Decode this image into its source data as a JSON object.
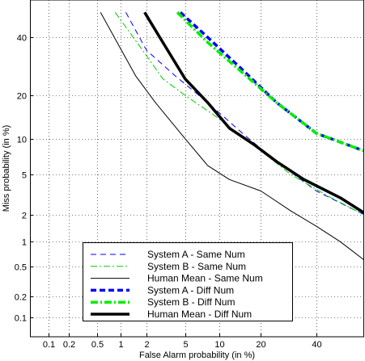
{
  "chart_data": {
    "type": "line",
    "title": "",
    "xlabel": "False Alarm probability (in %)",
    "ylabel": "Miss probability (in %)",
    "x_scale": "normal-deviate",
    "y_scale": "normal-deviate",
    "xlim": [
      0.05,
      60
    ],
    "ylim": [
      0.05,
      55
    ],
    "grid": true,
    "legend_position": "bottom-center",
    "x_ticks": [
      0.1,
      0.2,
      0.5,
      1,
      2,
      5,
      10,
      20,
      40
    ],
    "x_tick_labels": [
      "0.1",
      "0.2",
      "0.5",
      "1",
      "2",
      "5",
      "10",
      "20",
      "40"
    ],
    "y_ticks": [
      0.1,
      0.2,
      0.5,
      1,
      2,
      5,
      10,
      20,
      40
    ],
    "y_tick_labels": [
      "0.1",
      "0.2",
      "0.5",
      "1",
      "2",
      "5",
      "10",
      "20",
      "40"
    ],
    "series": [
      {
        "name": "System A - Same Num",
        "color": "#0000ff",
        "dash": "7,5",
        "width": 1,
        "points": [
          [
            1.15,
            50
          ],
          [
            2,
            35
          ],
          [
            4,
            26
          ],
          [
            8,
            18
          ],
          [
            15,
            11
          ],
          [
            25,
            6.5
          ],
          [
            40,
            3.5
          ],
          [
            60,
            2.0
          ]
        ]
      },
      {
        "name": "System B - Same Num",
        "color": "#00cc00",
        "dash": "8,3,2,3",
        "width": 1,
        "points": [
          [
            0.85,
            50
          ],
          [
            2,
            33
          ],
          [
            3,
            25
          ],
          [
            5,
            20
          ],
          [
            10,
            14
          ],
          [
            20,
            8
          ],
          [
            30,
            5
          ],
          [
            45,
            3.1
          ],
          [
            60,
            2.0
          ]
        ]
      },
      {
        "name": "Human Mean - Same Num",
        "color": "#000000",
        "dash": "",
        "width": 1,
        "points": [
          [
            0.55,
            50
          ],
          [
            0.9,
            38
          ],
          [
            1.5,
            26
          ],
          [
            2.5,
            18
          ],
          [
            5,
            10
          ],
          [
            8,
            6
          ],
          [
            12,
            4.5
          ],
          [
            20,
            3.5
          ],
          [
            30,
            2.2
          ],
          [
            40,
            1.5
          ],
          [
            50,
            1.0
          ],
          [
            60,
            0.6
          ]
        ]
      },
      {
        "name": "System A - Diff Num",
        "color": "#0000ff",
        "dash": "7,4",
        "width": 3.5,
        "points": [
          [
            4.5,
            50
          ],
          [
            8,
            40
          ],
          [
            15,
            28
          ],
          [
            25,
            18
          ],
          [
            40,
            11
          ],
          [
            60,
            8
          ]
        ]
      },
      {
        "name": "System B - Diff Num",
        "color": "#00ee00",
        "dash": "9,3,2,3",
        "width": 3.5,
        "points": [
          [
            4.2,
            50
          ],
          [
            8,
            38
          ],
          [
            15,
            27
          ],
          [
            25,
            18
          ],
          [
            40,
            11
          ],
          [
            60,
            8
          ]
        ]
      },
      {
        "name": "Human Mean - Diff Num",
        "color": "#000000",
        "dash": "",
        "width": 3.5,
        "points": [
          [
            1.9,
            50
          ],
          [
            3,
            38
          ],
          [
            5,
            25
          ],
          [
            8,
            18
          ],
          [
            12,
            12
          ],
          [
            18,
            9
          ],
          [
            25,
            6.5
          ],
          [
            35,
            4.5
          ],
          [
            50,
            3.0
          ],
          [
            60,
            2.1
          ]
        ]
      }
    ]
  }
}
